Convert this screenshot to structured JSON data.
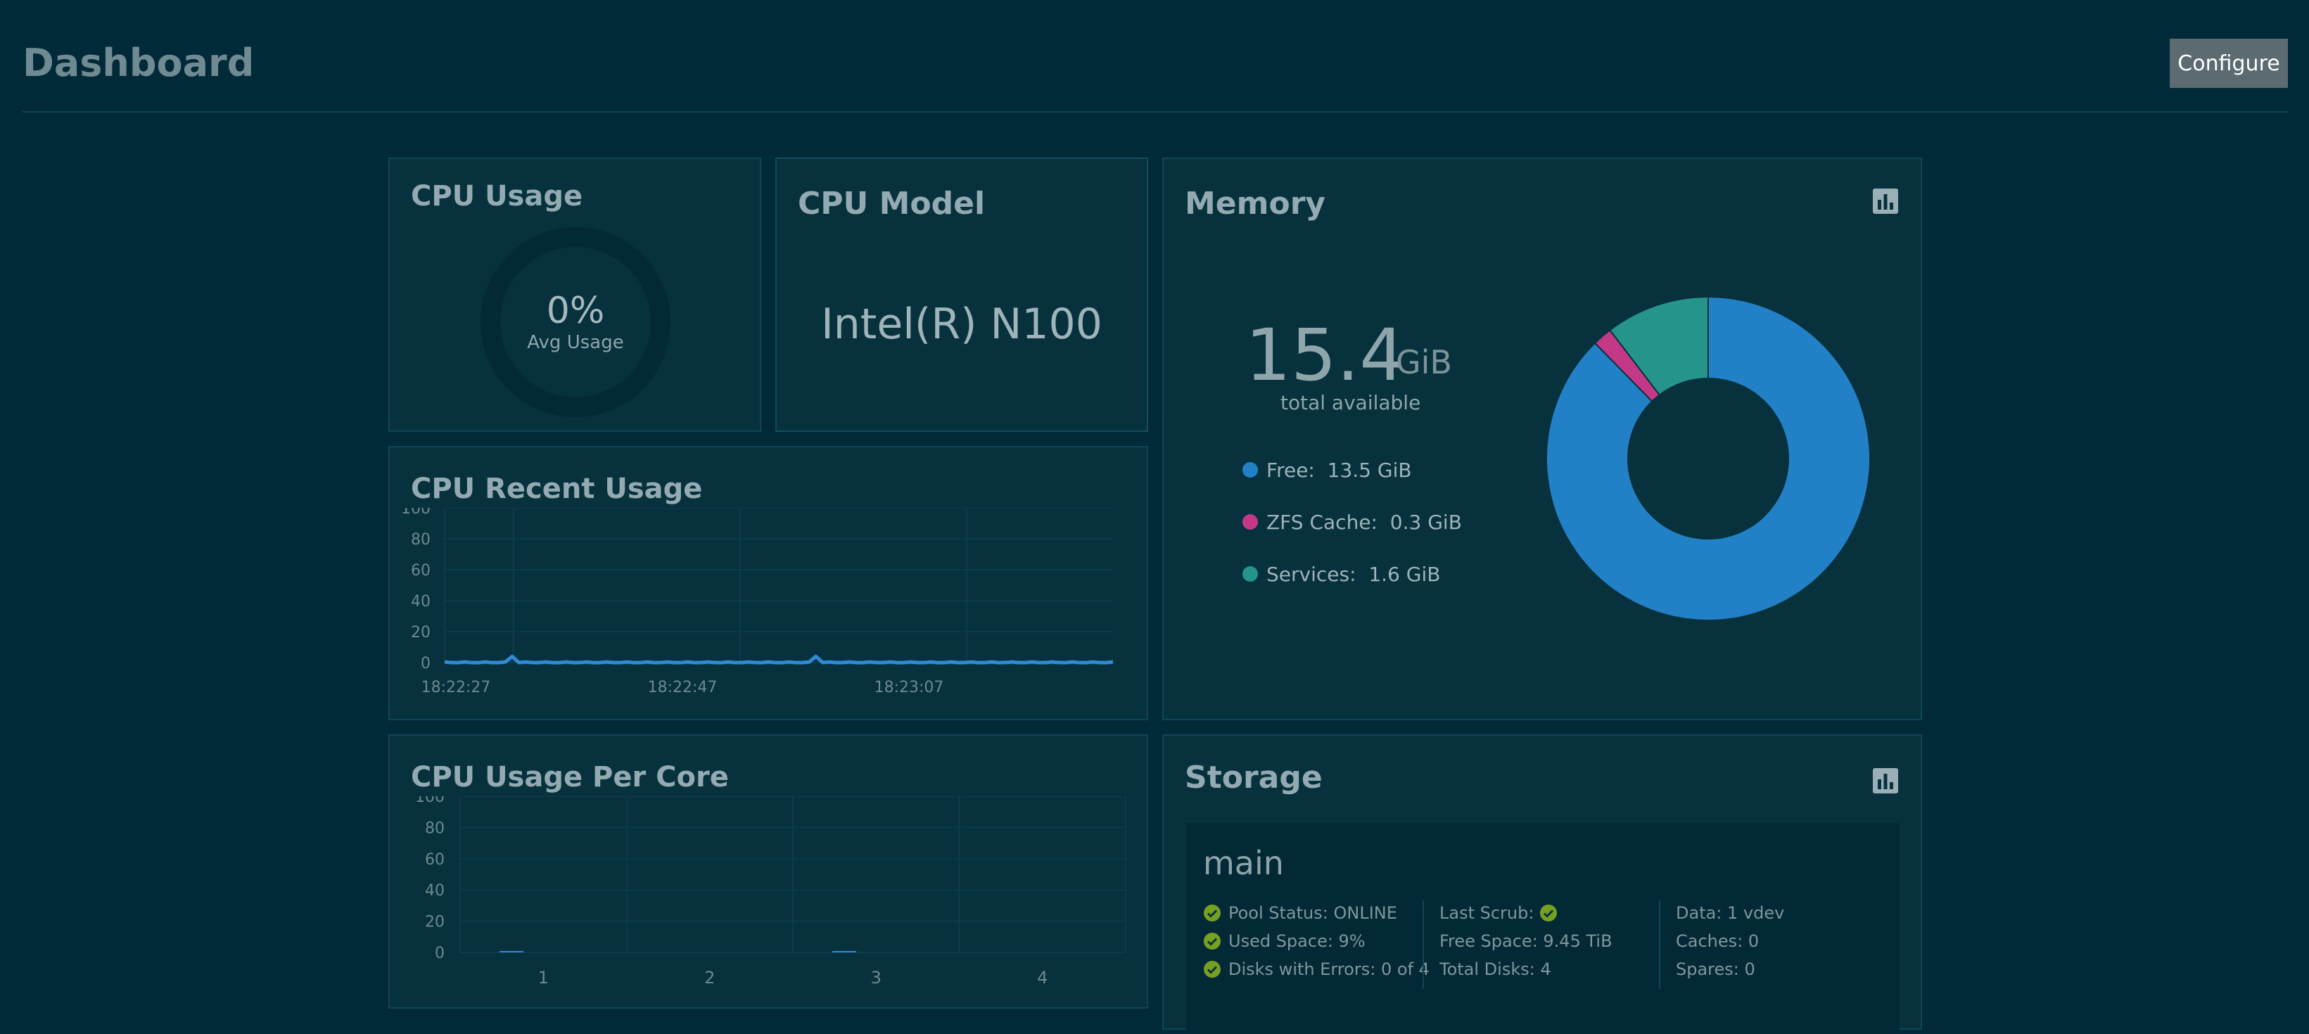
{
  "header": {
    "title": "Dashboard",
    "configure_label": "Configure"
  },
  "cpu_usage": {
    "title": "CPU Usage",
    "value": 0,
    "value_label": "0%",
    "sub_label": "Avg Usage"
  },
  "cpu_model": {
    "title": "CPU Model",
    "model": "Intel(R) N100"
  },
  "cpu_recent": {
    "title": "CPU Recent Usage",
    "chart_data": {
      "type": "line",
      "ylim": [
        0,
        100
      ],
      "y_ticks": [
        "100",
        "80",
        "60",
        "40",
        "20",
        "0"
      ],
      "x_ticks": [
        "18:22:27",
        "18:22:47",
        "18:23:07"
      ],
      "series": [
        {
          "values": [
            0,
            0,
            0,
            0,
            0,
            0,
            0,
            0,
            0,
            0,
            4,
            0,
            0,
            0,
            0,
            0,
            0,
            0,
            0,
            0,
            0,
            0,
            0,
            0,
            0,
            0,
            0,
            0,
            0,
            0,
            0,
            0,
            0,
            0,
            0,
            0,
            0,
            0,
            0,
            0,
            0,
            0,
            0,
            0,
            0,
            0,
            0,
            0,
            0,
            0,
            0,
            0,
            0,
            0,
            0,
            4,
            0,
            0,
            0,
            0,
            0,
            0,
            0,
            0,
            0,
            0,
            0,
            0,
            0,
            0,
            0,
            0,
            0,
            0,
            0,
            0,
            0,
            0,
            0,
            0,
            0,
            0,
            0,
            0,
            0,
            0,
            0,
            0,
            0,
            0,
            0,
            0,
            0,
            0,
            0,
            0,
            0,
            0,
            0,
            0
          ]
        }
      ],
      "color": "#2f8ad8"
    }
  },
  "cpu_per_core": {
    "title": "CPU Usage Per Core",
    "chart_data": {
      "type": "bar",
      "categories": [
        "1",
        "2",
        "3",
        "4"
      ],
      "values": [
        0.5,
        0,
        0.5,
        0
      ],
      "ylim": [
        0,
        100
      ],
      "y_ticks": [
        "100",
        "80",
        "60",
        "40",
        "20",
        "0"
      ],
      "color": "#2f8ad8"
    }
  },
  "memory": {
    "title": "Memory",
    "total_value": "15.4",
    "total_unit": "GiB",
    "total_label": "total available",
    "legend": [
      {
        "label": "Free:",
        "value": "13.5 GiB",
        "color": "#2281c6"
      },
      {
        "label": "ZFS Cache:",
        "value": "0.3 GiB",
        "color": "#c53887"
      },
      {
        "label": "Services:",
        "value": "1.6 GiB",
        "color": "#25948a"
      }
    ],
    "chart_data": {
      "type": "pie",
      "categories": [
        "Free",
        "ZFS Cache",
        "Services"
      ],
      "values": [
        13.5,
        0.3,
        1.6
      ],
      "colors": [
        "#2281c6",
        "#c53887",
        "#25948a"
      ]
    }
  },
  "storage": {
    "title": "Storage",
    "pool": {
      "name": "main",
      "col1": [
        "Pool Status: ONLINE",
        "Used Space: 9%",
        "Disks with Errors: 0 of 4"
      ],
      "col2": [
        "Last Scrub:",
        "Free Space: 9.45 TiB",
        "Total Disks: 4"
      ],
      "col3": [
        "Data: 1 vdev",
        "Caches: 0",
        "Spares: 0"
      ]
    }
  },
  "icons": {
    "stats": "bar-chart-icon",
    "check": "check-circle-icon"
  },
  "colors": {
    "accent": "#2f8ad8",
    "ok": "#76a01f",
    "background": "#002a37",
    "card": "#06313d"
  }
}
